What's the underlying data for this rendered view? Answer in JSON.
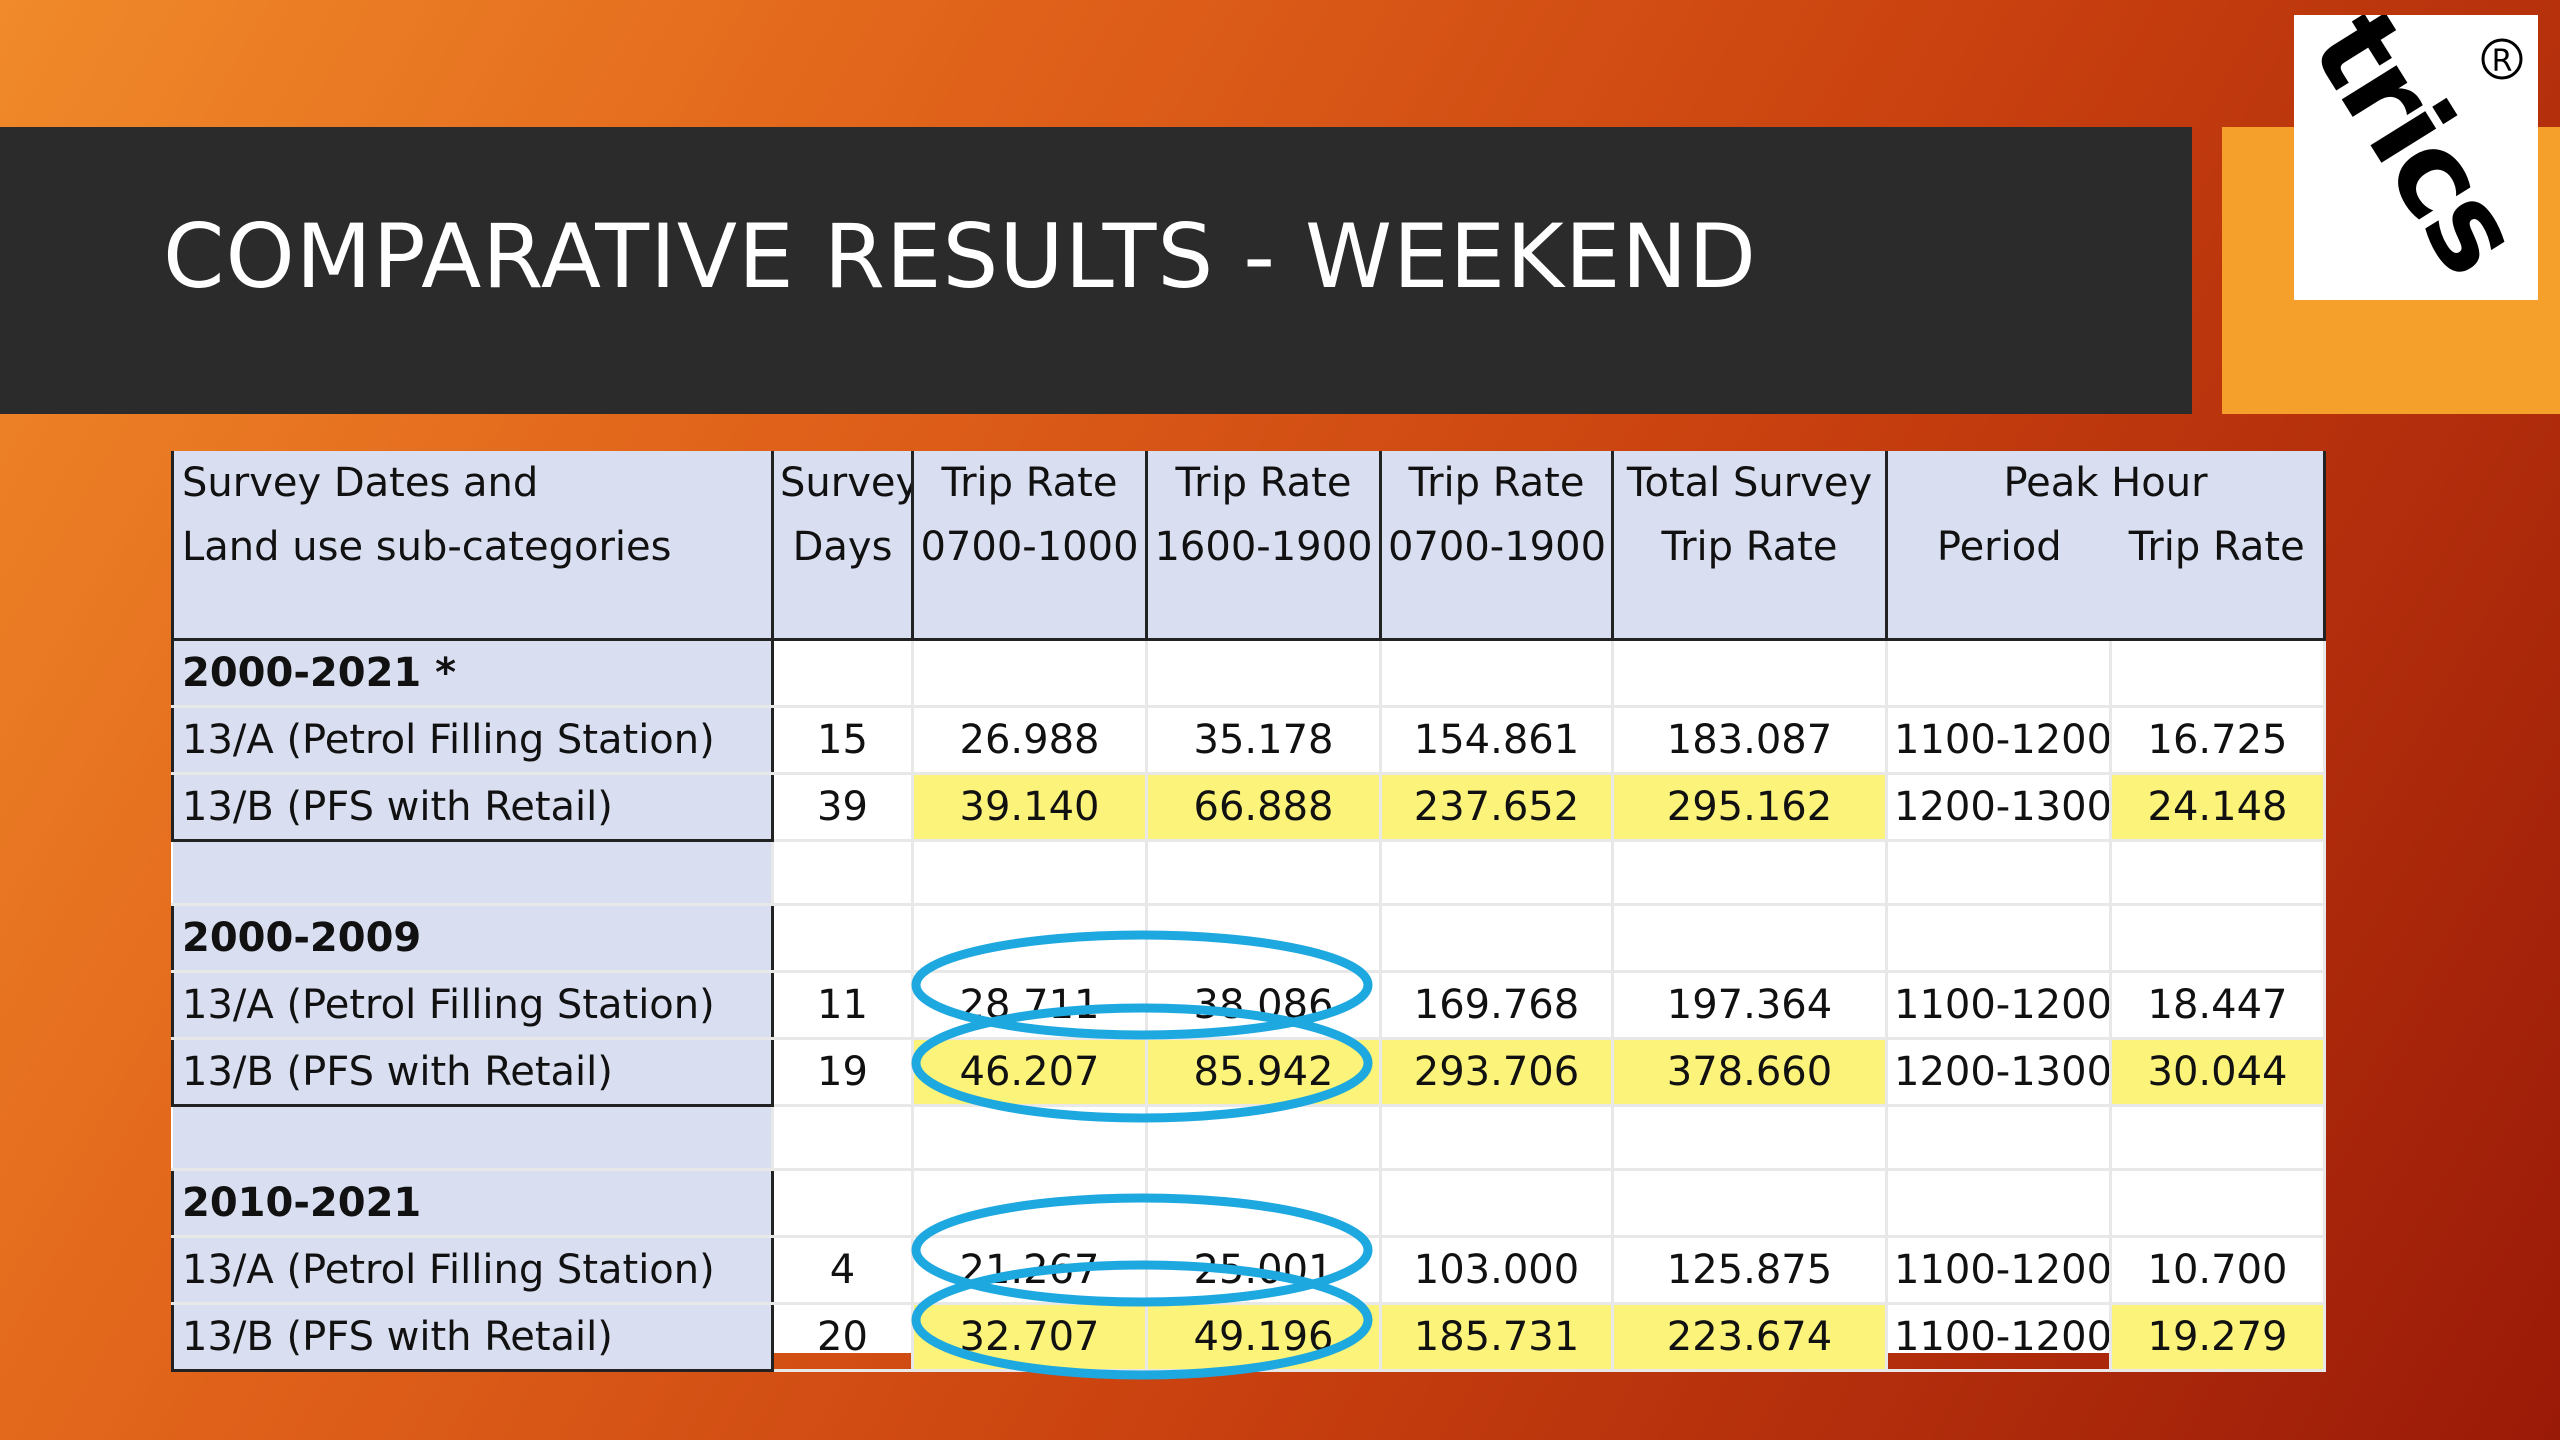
{
  "title": "COMPARATIVE RESULTS - WEEKEND",
  "logo_text": "trics",
  "logo_mark": "®",
  "colors": {
    "title_band": "#2b2b2b",
    "header_fill": "#d9dff0",
    "highlight": "#fbf37a",
    "oval": "#1ea8e0",
    "logo_backing": "#f5a02a"
  },
  "table": {
    "header": {
      "col1_line1": "Survey Dates and",
      "col1_line2": "Land use sub-categories",
      "col2_line1": "Survey",
      "col2_line2": "Days",
      "col3_line1": "Trip Rate",
      "col3_line2": "0700-1000",
      "col4_line1": "Trip Rate",
      "col4_line2": "1600-1900",
      "col5_line1": "Trip Rate",
      "col5_line2": "0700-1900",
      "col6_line1": "Total Survey",
      "col6_line2": "Trip Rate",
      "col7_line1": "Peak Hour",
      "col7a_line2": "Period",
      "col7b_line2": "Trip Rate"
    },
    "groups": [
      {
        "period": "2000-2021 *",
        "rows": [
          {
            "category": "13/A (Petrol Filling Station)",
            "days": "15",
            "am": "26.988",
            "pm": "35.178",
            "day": "154.861",
            "total": "183.087",
            "peak_period": "1100-1200",
            "peak_rate": "16.725"
          },
          {
            "category": "13/B (PFS with Retail)",
            "days": "39",
            "am": "39.140",
            "pm": "66.888",
            "day": "237.652",
            "total": "295.162",
            "peak_period": "1200-1300",
            "peak_rate": "24.148"
          }
        ]
      },
      {
        "period": "2000-2009",
        "rows": [
          {
            "category": "13/A (Petrol Filling Station)",
            "days": "11",
            "am": "28.711",
            "pm": "38.086",
            "day": "169.768",
            "total": "197.364",
            "peak_period": "1100-1200",
            "peak_rate": "18.447"
          },
          {
            "category": "13/B (PFS with Retail)",
            "days": "19",
            "am": "46.207",
            "pm": "85.942",
            "day": "293.706",
            "total": "378.660",
            "peak_period": "1200-1300",
            "peak_rate": "30.044"
          }
        ]
      },
      {
        "period": "2010-2021",
        "rows": [
          {
            "category": "13/A (Petrol Filling Station)",
            "days": "4",
            "am": "21.267",
            "pm": "25.001",
            "day": "103.000",
            "total": "125.875",
            "peak_period": "1100-1200",
            "peak_rate": "10.700"
          },
          {
            "category": "13/B (PFS with Retail)",
            "days": "20",
            "am": "32.707",
            "pm": "49.196",
            "day": "185.731",
            "total": "223.674",
            "peak_period": "1100-1200",
            "peak_rate": "19.279"
          }
        ]
      }
    ]
  }
}
